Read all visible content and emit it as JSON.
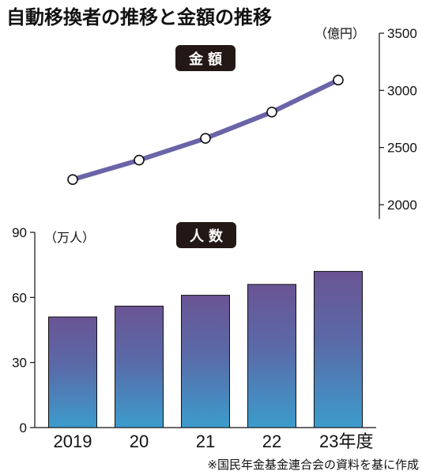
{
  "title": "自動移換者の推移と金額の推移",
  "source": "※国民年金基金連合会の資料を基に作成",
  "colors": {
    "line": "#6a64a8",
    "bar_top": "#6a5494",
    "bar_bottom": "#3c9ccc",
    "badge_bg": "#231815"
  },
  "chart_data": [
    {
      "type": "line",
      "badge": "金額",
      "unit_label": "（億円）",
      "categories": [
        "2019",
        "20",
        "21",
        "22",
        "23年度"
      ],
      "values": [
        2220,
        2390,
        2580,
        2810,
        3090
      ],
      "ylim": [
        2000,
        3500
      ],
      "yticks": [
        2000,
        2500,
        3000,
        3500
      ],
      "ytick_labels": [
        "2000",
        "2500",
        "3000",
        "3500"
      ],
      "axis_side": "right"
    },
    {
      "type": "bar",
      "badge": "人数",
      "unit_label": "（万人）",
      "categories": [
        "2019",
        "20",
        "21",
        "22",
        "23年度"
      ],
      "values": [
        51,
        56,
        61,
        66,
        72
      ],
      "ylim": [
        0,
        90
      ],
      "yticks": [
        0,
        30,
        60,
        90
      ],
      "ytick_labels": [
        "0",
        "30",
        "60",
        "90"
      ],
      "axis_side": "left"
    }
  ]
}
